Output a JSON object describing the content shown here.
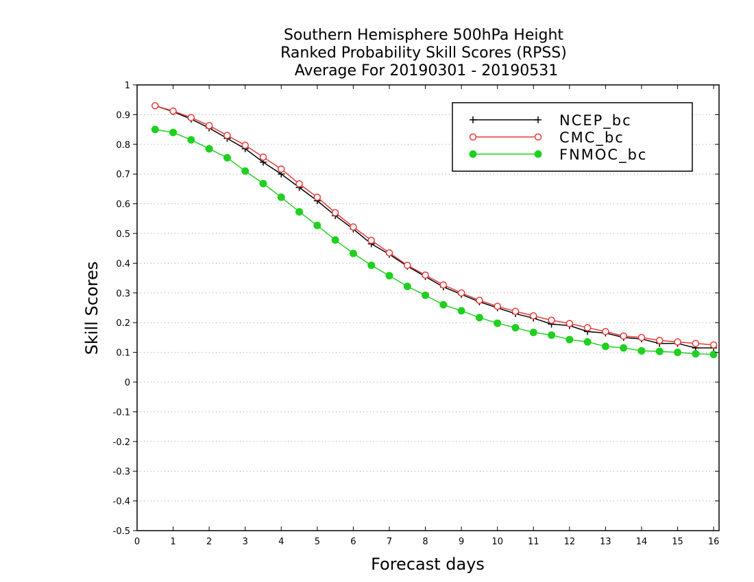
{
  "chart_data": {
    "type": "line",
    "title": [
      "Southern Hemisphere 500hPa Height",
      "Ranked Probability Skill Scores (RPSS)",
      "Average For 20190301 - 20190531"
    ],
    "xlabel": "Forecast days",
    "ylabel": "Skill Scores",
    "xlim": [
      0,
      16.15
    ],
    "ylim": [
      -0.5,
      1
    ],
    "xticks": [
      0,
      1,
      2,
      3,
      4,
      5,
      6,
      7,
      8,
      9,
      10,
      11,
      12,
      13,
      14,
      15,
      16
    ],
    "yticks": [
      -0.5,
      -0.4,
      -0.3,
      -0.2,
      -0.1,
      0,
      0.1,
      0.2,
      0.3,
      0.4,
      0.5,
      0.6,
      0.7,
      0.8,
      0.9,
      1
    ],
    "grid": "horizontal dotted",
    "legend_position": "top-right",
    "x": [
      0.5,
      1,
      1.5,
      2,
      2.5,
      3,
      3.5,
      4,
      4.5,
      5,
      5.5,
      6,
      6.5,
      7,
      7.5,
      8,
      8.5,
      9,
      9.5,
      10,
      10.5,
      11,
      11.5,
      12,
      12.5,
      13,
      13.5,
      14,
      14.5,
      15,
      15.5,
      16
    ],
    "series": [
      {
        "name": "NCEP_bc",
        "color": "#000000",
        "marker": "plus",
        "values": [
          0.93,
          0.91,
          0.885,
          0.855,
          0.82,
          0.785,
          0.74,
          0.7,
          0.655,
          0.61,
          0.56,
          0.515,
          0.465,
          0.43,
          0.39,
          0.355,
          0.32,
          0.295,
          0.27,
          0.25,
          0.23,
          0.215,
          0.195,
          0.19,
          0.17,
          0.165,
          0.15,
          0.145,
          0.13,
          0.13,
          0.115,
          0.115
        ]
      },
      {
        "name": "CMC_bc",
        "color": "#e83838",
        "marker": "open-circle",
        "values": [
          0.93,
          0.912,
          0.89,
          0.863,
          0.83,
          0.797,
          0.757,
          0.717,
          0.667,
          0.622,
          0.57,
          0.522,
          0.477,
          0.435,
          0.393,
          0.36,
          0.327,
          0.3,
          0.275,
          0.255,
          0.238,
          0.223,
          0.208,
          0.197,
          0.183,
          0.17,
          0.155,
          0.15,
          0.14,
          0.135,
          0.13,
          0.125
        ]
      },
      {
        "name": "FNMOC_bc",
        "color": "#20d020",
        "marker": "filled-circle",
        "values": [
          0.85,
          0.84,
          0.815,
          0.785,
          0.755,
          0.71,
          0.668,
          0.622,
          0.573,
          0.527,
          0.478,
          0.433,
          0.393,
          0.358,
          0.322,
          0.292,
          0.26,
          0.24,
          0.217,
          0.198,
          0.183,
          0.167,
          0.158,
          0.143,
          0.135,
          0.12,
          0.115,
          0.105,
          0.103,
          0.1,
          0.095,
          0.093
        ]
      }
    ]
  }
}
